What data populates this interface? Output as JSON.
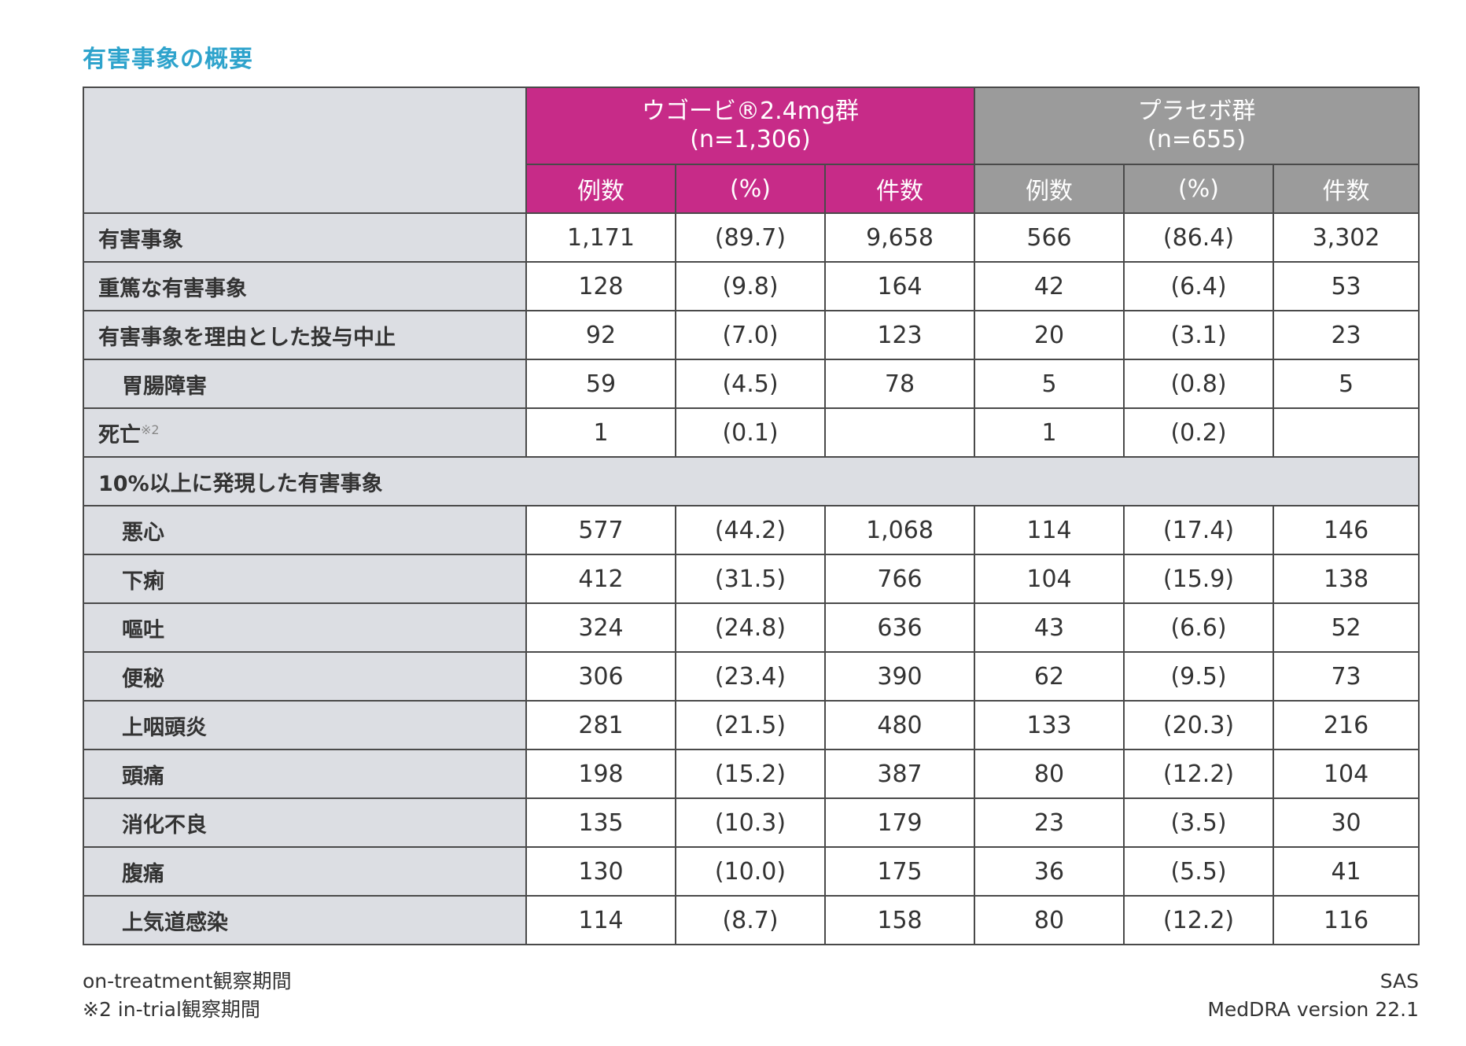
{
  "title": "有害事象の概要",
  "groups": {
    "wegovy": {
      "name": "ウゴービ®2.4mg群",
      "n": "(n=1,306)"
    },
    "placebo": {
      "name": "プラセボ群",
      "n": "(n=655)"
    }
  },
  "subheaders": {
    "count": "例数",
    "pct": "(%)",
    "events": "件数"
  },
  "rows": [
    {
      "label": "有害事象",
      "note": "",
      "indent": false,
      "w_n": "1,171",
      "w_pct": "(89.7)",
      "w_ev": "9,658",
      "p_n": "566",
      "p_pct": "(86.4)",
      "p_ev": "3,302"
    },
    {
      "label": "重篤な有害事象",
      "note": "",
      "indent": false,
      "w_n": "128",
      "w_pct": "(9.8)",
      "w_ev": "164",
      "p_n": "42",
      "p_pct": "(6.4)",
      "p_ev": "53"
    },
    {
      "label": "有害事象を理由とした投与中止",
      "note": "",
      "indent": false,
      "w_n": "92",
      "w_pct": "(7.0)",
      "w_ev": "123",
      "p_n": "20",
      "p_pct": "(3.1)",
      "p_ev": "23"
    },
    {
      "label": "胃腸障害",
      "note": "",
      "indent": true,
      "w_n": "59",
      "w_pct": "(4.5)",
      "w_ev": "78",
      "p_n": "5",
      "p_pct": "(0.8)",
      "p_ev": "5"
    },
    {
      "label": "死亡",
      "note": "※2",
      "indent": false,
      "w_n": "1",
      "w_pct": "(0.1)",
      "w_ev": "",
      "p_n": "1",
      "p_pct": "(0.2)",
      "p_ev": ""
    }
  ],
  "section_label": "10%以上に発現した有害事象",
  "section_rows": [
    {
      "label": "悪心",
      "w_n": "577",
      "w_pct": "(44.2)",
      "w_ev": "1,068",
      "p_n": "114",
      "p_pct": "(17.4)",
      "p_ev": "146"
    },
    {
      "label": "下痢",
      "w_n": "412",
      "w_pct": "(31.5)",
      "w_ev": "766",
      "p_n": "104",
      "p_pct": "(15.9)",
      "p_ev": "138"
    },
    {
      "label": "嘔吐",
      "w_n": "324",
      "w_pct": "(24.8)",
      "w_ev": "636",
      "p_n": "43",
      "p_pct": "(6.6)",
      "p_ev": "52"
    },
    {
      "label": "便秘",
      "w_n": "306",
      "w_pct": "(23.4)",
      "w_ev": "390",
      "p_n": "62",
      "p_pct": "(9.5)",
      "p_ev": "73"
    },
    {
      "label": "上咽頭炎",
      "w_n": "281",
      "w_pct": "(21.5)",
      "w_ev": "480",
      "p_n": "133",
      "p_pct": "(20.3)",
      "p_ev": "216"
    },
    {
      "label": "頭痛",
      "w_n": "198",
      "w_pct": "(15.2)",
      "w_ev": "387",
      "p_n": "80",
      "p_pct": "(12.2)",
      "p_ev": "104"
    },
    {
      "label": "消化不良",
      "w_n": "135",
      "w_pct": "(10.3)",
      "w_ev": "179",
      "p_n": "23",
      "p_pct": "(3.5)",
      "p_ev": "30"
    },
    {
      "label": "腹痛",
      "w_n": "130",
      "w_pct": "(10.0)",
      "w_ev": "175",
      "p_n": "36",
      "p_pct": "(5.5)",
      "p_ev": "41"
    },
    {
      "label": "上気道感染",
      "w_n": "114",
      "w_pct": "(8.7)",
      "w_ev": "158",
      "p_n": "80",
      "p_pct": "(12.2)",
      "p_ev": "116"
    }
  ],
  "footnotes": {
    "left": [
      "on-treatment観察期間",
      "※2 in-trial観察期間"
    ],
    "right": [
      "SAS",
      "MedDRA version 22.1"
    ]
  },
  "colors": {
    "title": "#2ea3cc",
    "wegovy_header": "#c72b88",
    "placebo_header": "#9b9b9b",
    "label_bg": "#dcdee3"
  }
}
